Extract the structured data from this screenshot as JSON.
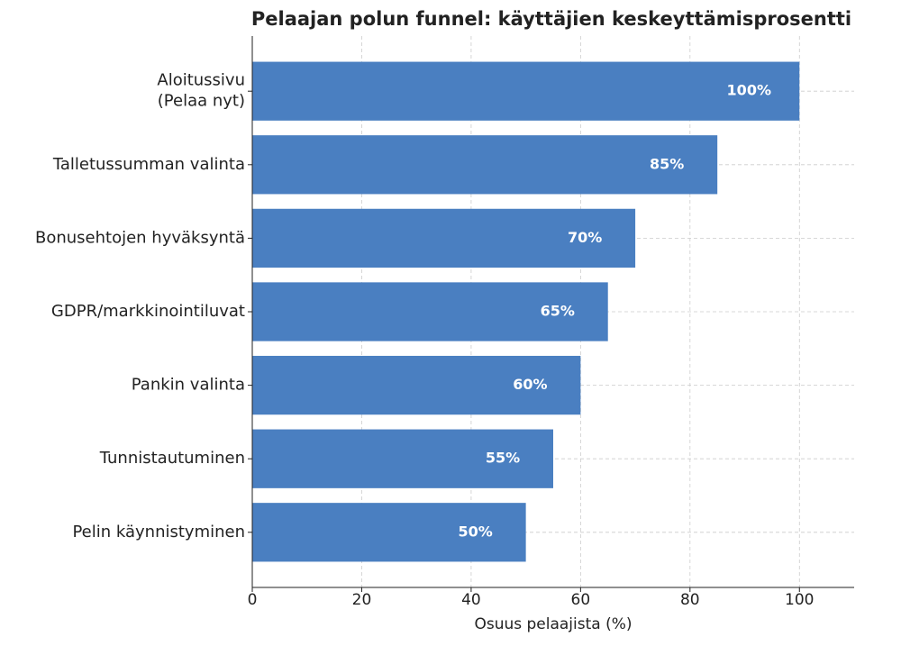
{
  "chart_data": {
    "type": "barh",
    "title": "Pelaajan polun funnel: käyttäjien keskeyttämisprosentti",
    "xlabel": "Osuus pelaajista (%)",
    "categories": [
      "Aloitussivu\n(Pelaa nyt)",
      "Talletussumman valinta",
      "Bonusehtojen hyväksyntä",
      "GDPR/markkinointiluvat",
      "Pankin valinta",
      "Tunnistautuminen",
      "Pelin käynnistyminen"
    ],
    "values": [
      100,
      85,
      70,
      65,
      60,
      55,
      50
    ],
    "value_labels": [
      "100%",
      "85%",
      "70%",
      "65%",
      "60%",
      "55%",
      "50%"
    ],
    "color": "#4a7fc1",
    "xlim": [
      0,
      110
    ],
    "xticks": [
      0,
      20,
      40,
      60,
      80,
      100
    ],
    "grid": true
  }
}
